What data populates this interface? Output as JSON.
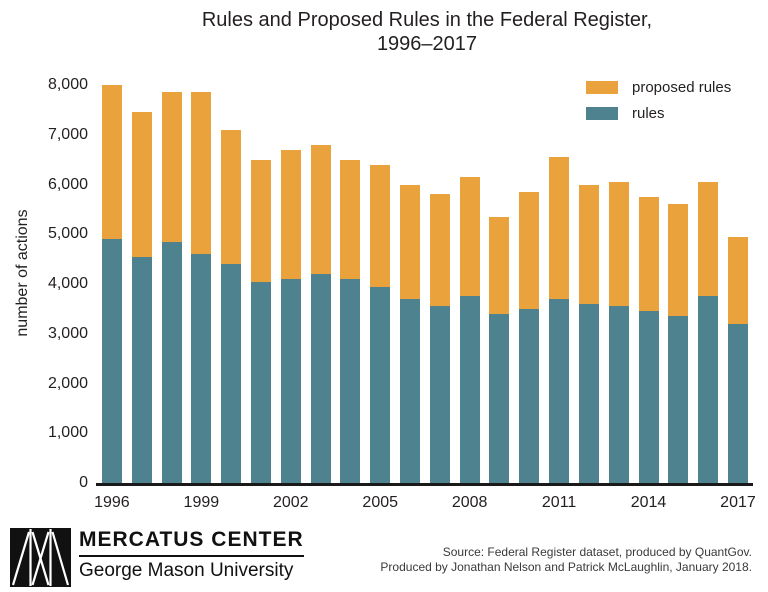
{
  "title": {
    "line1": "Rules and Proposed Rules in the Federal Register,",
    "line2": "1996–2017"
  },
  "colors": {
    "proposed_rules": "#E9A23C",
    "rules": "#4D828E",
    "text": "#231F20",
    "axis_line": "#1A1A1A",
    "source_text": "#3A3A3A",
    "logo_black": "#111111"
  },
  "legend": {
    "items": [
      {
        "label": "proposed rules",
        "color": "#E9A23C"
      },
      {
        "label": "rules",
        "color": "#4D828E"
      }
    ]
  },
  "yaxis": {
    "label": "number of actions",
    "ticks": [
      "8,000",
      "7,000",
      "6,000",
      "5,000",
      "4,000",
      "3,000",
      "2,000",
      "1,000",
      "0"
    ]
  },
  "xaxis": {
    "labeled_years": [
      "1996",
      "1999",
      "2002",
      "2005",
      "2008",
      "2011",
      "2014",
      "2017"
    ]
  },
  "chart_data": {
    "type": "bar",
    "stacked": true,
    "title": "Rules and Proposed Rules in the Federal Register, 1996–2017",
    "xlabel": "",
    "ylabel": "number of actions",
    "ylim": [
      0,
      8000
    ],
    "ytick_step": 1000,
    "grid": false,
    "legend_position": "top-right",
    "categories": [
      1996,
      1997,
      1998,
      1999,
      2000,
      2001,
      2002,
      2003,
      2004,
      2005,
      2006,
      2007,
      2008,
      2009,
      2010,
      2011,
      2012,
      2013,
      2014,
      2015,
      2016,
      2017
    ],
    "series": [
      {
        "name": "rules",
        "color": "#4D828E",
        "values": [
          4900,
          4550,
          4850,
          4600,
          4400,
          4050,
          4100,
          4200,
          4100,
          3950,
          3700,
          3550,
          3750,
          3400,
          3500,
          3700,
          3600,
          3550,
          3450,
          3350,
          3750,
          3200
        ]
      },
      {
        "name": "proposed rules",
        "color": "#E9A23C",
        "values": [
          3100,
          2900,
          3000,
          3250,
          2700,
          2450,
          2600,
          2600,
          2400,
          2450,
          2300,
          2250,
          2400,
          1950,
          2350,
          2850,
          2400,
          2500,
          2300,
          2250,
          2300,
          1750
        ]
      }
    ],
    "totals": [
      8000,
      7450,
      7850,
      7850,
      7100,
      6500,
      6700,
      6800,
      6500,
      6400,
      6000,
      5800,
      6150,
      5350,
      5850,
      6550,
      6000,
      6050,
      5750,
      5600,
      6050,
      4950
    ]
  },
  "footer": {
    "logo_org": "MERCATUS CENTER",
    "logo_sub": "George Mason University",
    "source_line1": "Source: Federal Register dataset, produced by QuantGov.",
    "source_line2": "Produced by Jonathan Nelson and Patrick McLaughlin, January 2018."
  }
}
